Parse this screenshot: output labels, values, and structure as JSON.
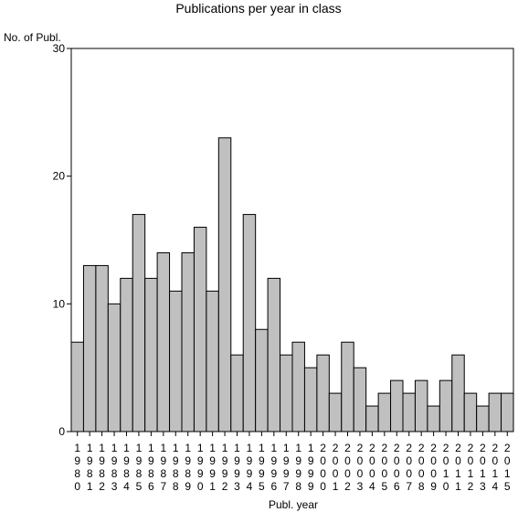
{
  "chart_data": {
    "type": "bar",
    "title": "Publications per year in class",
    "ylabel": "No. of Publ.",
    "xlabel": "Publ. year",
    "ylim": [
      0,
      30
    ],
    "yticks": [
      0,
      10,
      20,
      30
    ],
    "categories": [
      "1980",
      "1981",
      "1982",
      "1983",
      "1984",
      "1985",
      "1986",
      "1987",
      "1988",
      "1989",
      "1990",
      "1991",
      "1992",
      "1993",
      "1994",
      "1995",
      "1996",
      "1997",
      "1998",
      "1999",
      "2000",
      "2001",
      "2002",
      "2003",
      "2004",
      "2005",
      "2006",
      "2007",
      "2008",
      "2009",
      "2010",
      "2011",
      "2012",
      "2013",
      "2014",
      "2015"
    ],
    "values": [
      7,
      13,
      13,
      10,
      12,
      17,
      12,
      14,
      11,
      14,
      16,
      11,
      23,
      6,
      17,
      8,
      12,
      6,
      7,
      5,
      6,
      3,
      7,
      5,
      2,
      3,
      4,
      3,
      4,
      2,
      4,
      6,
      3,
      2,
      3,
      3
    ],
    "bar_color": "#c0c0c0",
    "grid": false
  }
}
